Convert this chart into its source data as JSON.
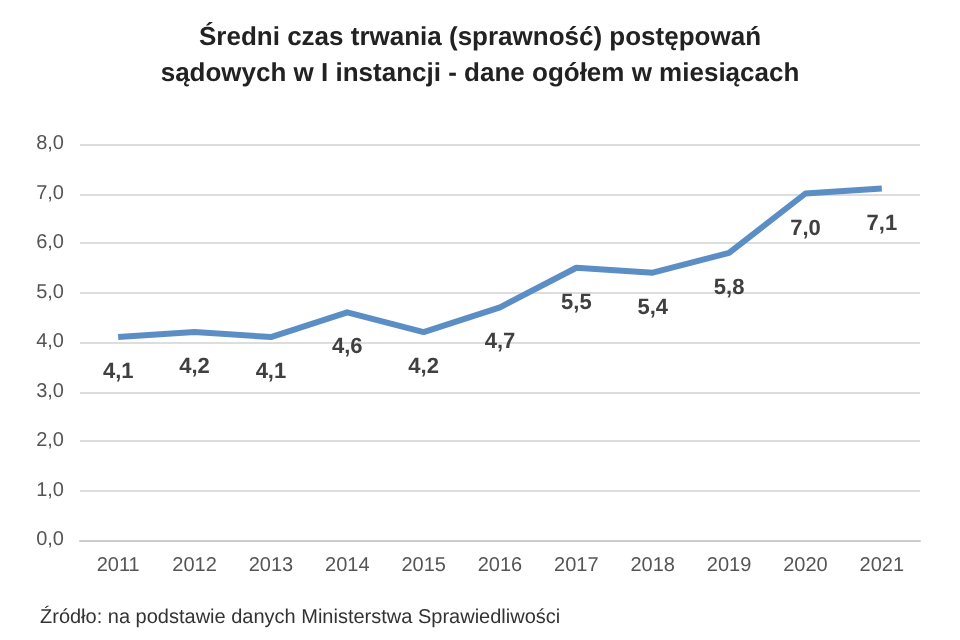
{
  "chart_data": {
    "type": "line",
    "title": "Średni czas trwania (sprawność) postępowań\nsądowych w I instancji - dane ogółem w miesiącach",
    "categories": [
      "2011",
      "2012",
      "2013",
      "2014",
      "2015",
      "2016",
      "2017",
      "2018",
      "2019",
      "2020",
      "2021"
    ],
    "series": [
      {
        "color": "#5b8ec4",
        "values": [
          4.1,
          4.2,
          4.1,
          4.6,
          4.2,
          4.7,
          5.5,
          5.4,
          5.8,
          7.0,
          7.1
        ],
        "value_labels": [
          "4,1",
          "4,2",
          "4,1",
          "4,6",
          "4,2",
          "4,7",
          "5,5",
          "5,4",
          "5,8",
          "7,0",
          "7,1"
        ]
      }
    ],
    "ylim": [
      0,
      8
    ],
    "yticks": [
      {
        "value": 0,
        "label": "0,0"
      },
      {
        "value": 1,
        "label": "1,0"
      },
      {
        "value": 2,
        "label": "2,0"
      },
      {
        "value": 3,
        "label": "3,0"
      },
      {
        "value": 4,
        "label": "4,0"
      },
      {
        "value": 5,
        "label": "5,0"
      },
      {
        "value": 6,
        "label": "6,0"
      },
      {
        "value": 7,
        "label": "7,0"
      },
      {
        "value": 8,
        "label": "8,0"
      }
    ],
    "grid": "y",
    "marker": "none",
    "line_style": "solid",
    "annotations": [
      "Źródło: na podstawie danych Ministerstwa Sprawiedliwości"
    ]
  }
}
